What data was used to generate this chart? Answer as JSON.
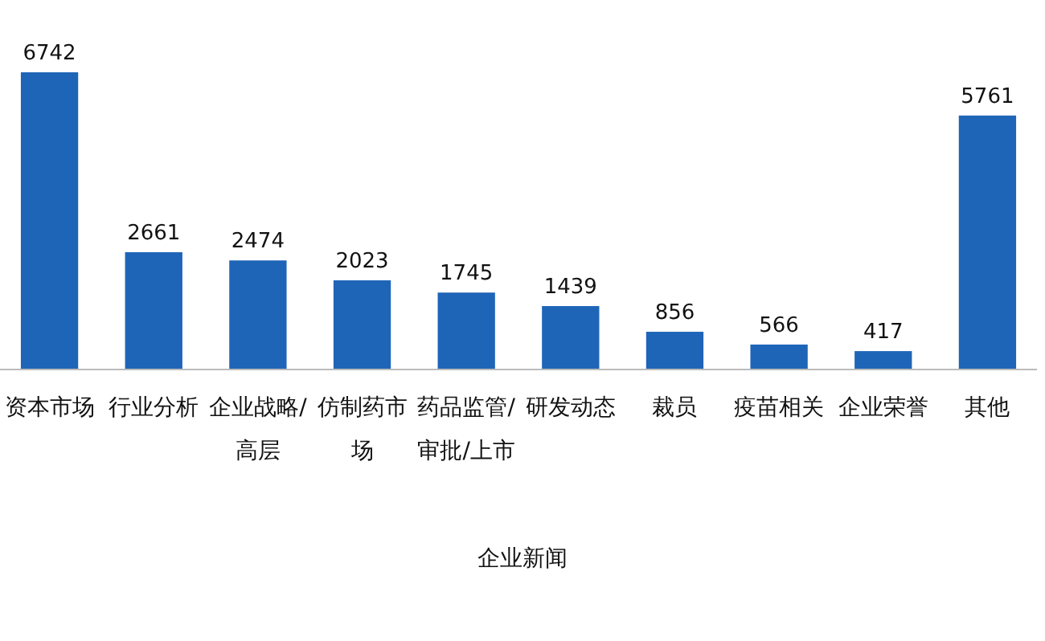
{
  "chart_data": {
    "type": "bar",
    "xlabel": "企业新闻",
    "categories": [
      "资本市场",
      "行业分析",
      "企业战略/高层",
      "仿制药市场",
      "药品监管/审批/上市",
      "研发动态",
      "裁员",
      "疫苗相关",
      "企业荣誉",
      "其他"
    ],
    "values": [
      6742,
      2661,
      2474,
      2023,
      1745,
      1439,
      856,
      566,
      417,
      5761
    ],
    "color": "#1e65b8",
    "data_labels": true
  }
}
